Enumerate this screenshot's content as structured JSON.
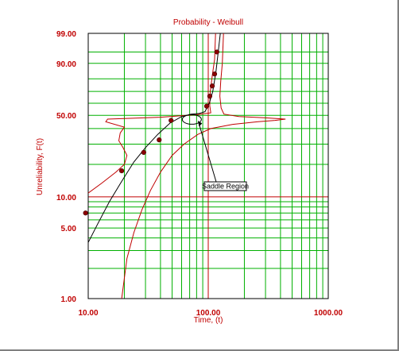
{
  "chart_data": {
    "type": "scatter",
    "title": "Probability - Weibull",
    "xlabel": "Time, (t)",
    "ylabel": "Unreliability, F(t)",
    "x_scale": "log",
    "y_scale": "weibull",
    "xlim": [
      10,
      1000
    ],
    "ylim": [
      1,
      99
    ],
    "grid": true,
    "x_ticks": [
      {
        "value": 10,
        "label": "10.00"
      },
      {
        "value": 100,
        "label": "100.00"
      },
      {
        "value": 1000,
        "label": "1000.00"
      }
    ],
    "y_ticks": [
      {
        "value": 1,
        "label": "1.00"
      },
      {
        "value": 5,
        "label": "5.00"
      },
      {
        "value": 10,
        "label": "10.00"
      },
      {
        "value": 50,
        "label": "50.00"
      },
      {
        "value": 90,
        "label": "90.00"
      },
      {
        "value": 99,
        "label": "99.00"
      }
    ],
    "points": [
      {
        "x": 9.5,
        "y": 7.0
      },
      {
        "x": 19,
        "y": 17.5
      },
      {
        "x": 29,
        "y": 25.5
      },
      {
        "x": 39,
        "y": 32.5
      },
      {
        "x": 49,
        "y": 46.0
      },
      {
        "x": 97,
        "y": 57.5
      },
      {
        "x": 103,
        "y": 66.0
      },
      {
        "x": 108,
        "y": 74.5
      },
      {
        "x": 113,
        "y": 83.5
      },
      {
        "x": 118,
        "y": 95.0
      }
    ],
    "fit_line": [
      {
        "x": 9.5,
        "y": 3.2
      },
      {
        "x": 12,
        "y": 5.5
      },
      {
        "x": 15,
        "y": 9.0
      },
      {
        "x": 19,
        "y": 14.0
      },
      {
        "x": 24,
        "y": 21.0
      },
      {
        "x": 30,
        "y": 28.0
      },
      {
        "x": 38,
        "y": 36.0
      },
      {
        "x": 48,
        "y": 44.0
      },
      {
        "x": 60,
        "y": 49.0
      },
      {
        "x": 72,
        "y": 51.0
      },
      {
        "x": 84,
        "y": 51.5
      },
      {
        "x": 94,
        "y": 53.0
      },
      {
        "x": 102,
        "y": 60.0
      },
      {
        "x": 109,
        "y": 70.0
      },
      {
        "x": 116,
        "y": 85.0
      },
      {
        "x": 122,
        "y": 96.0
      },
      {
        "x": 126,
        "y": 99.0
      }
    ],
    "confidence_bounds": [
      [
        {
          "x": 9.6,
          "y": 10.5
        },
        {
          "x": 13,
          "y": 13.5
        },
        {
          "x": 17,
          "y": 17.0
        },
        {
          "x": 20,
          "y": 20.0
        },
        {
          "x": 21,
          "y": 24.0
        },
        {
          "x": 19.5,
          "y": 28.0
        },
        {
          "x": 18,
          "y": 32.0
        },
        {
          "x": 18.5,
          "y": 37.0
        },
        {
          "x": 20,
          "y": 41.0
        },
        {
          "x": 14,
          "y": 45.0
        },
        {
          "x": 14.5,
          "y": 47.0
        },
        {
          "x": 40,
          "y": 48.5
        },
        {
          "x": 80,
          "y": 50.5
        },
        {
          "x": 105,
          "y": 52.0
        },
        {
          "x": 103,
          "y": 58.0
        },
        {
          "x": 104,
          "y": 70.0
        },
        {
          "x": 108,
          "y": 82.0
        },
        {
          "x": 113,
          "y": 92.0
        },
        {
          "x": 115,
          "y": 99.0
        }
      ],
      [
        {
          "x": 19,
          "y": 1.0
        },
        {
          "x": 21,
          "y": 2.5
        },
        {
          "x": 24,
          "y": 4.5
        },
        {
          "x": 28,
          "y": 7.5
        },
        {
          "x": 33,
          "y": 11.5
        },
        {
          "x": 40,
          "y": 17.0
        },
        {
          "x": 50,
          "y": 24.0
        },
        {
          "x": 63,
          "y": 30.0
        },
        {
          "x": 82,
          "y": 36.0
        },
        {
          "x": 105,
          "y": 40.0
        },
        {
          "x": 160,
          "y": 43.0
        },
        {
          "x": 260,
          "y": 45.0
        },
        {
          "x": 360,
          "y": 46.0
        },
        {
          "x": 440,
          "y": 47.0
        },
        {
          "x": 300,
          "y": 48.0
        },
        {
          "x": 180,
          "y": 49.0
        },
        {
          "x": 135,
          "y": 51.0
        },
        {
          "x": 128,
          "y": 56.0
        },
        {
          "x": 125,
          "y": 66.0
        },
        {
          "x": 127,
          "y": 78.0
        },
        {
          "x": 131,
          "y": 90.0
        },
        {
          "x": 134,
          "y": 99.0
        }
      ]
    ],
    "annotation": {
      "text": "Saddle Region",
      "target": {
        "x": 85,
        "y": 48
      }
    },
    "colors": {
      "grid": "#00b000",
      "axis_text": "#c00000",
      "bounds": "#c00000",
      "fit": "#000000",
      "points": "#8b0000",
      "highlight_grid": "#c00000"
    }
  }
}
